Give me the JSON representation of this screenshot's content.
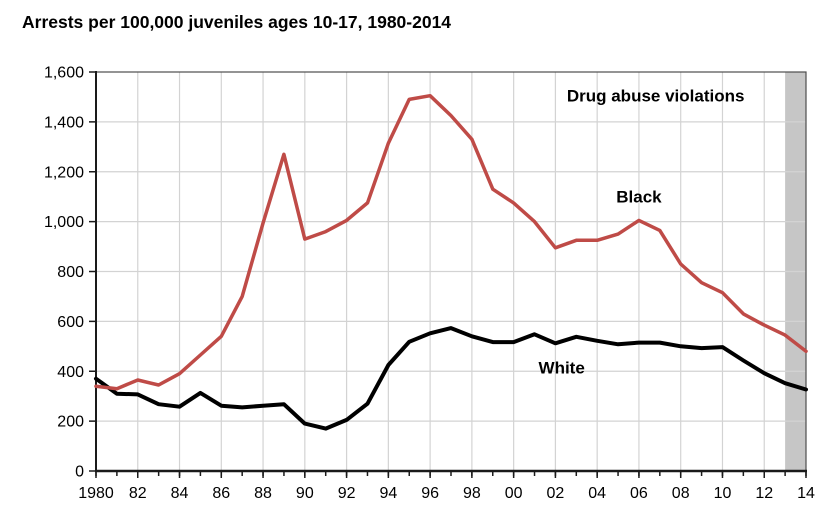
{
  "title": "Arrests per 100,000 juveniles ages 10-17, 1980-2014",
  "chart_data": {
    "type": "line",
    "title": "Arrests per 100,000 juveniles ages 10-17, 1980-2014",
    "xlabel": "",
    "ylabel": "",
    "xlim": [
      1980,
      2014
    ],
    "ylim": [
      0,
      1600
    ],
    "grid": true,
    "x": [
      1980,
      1981,
      1982,
      1983,
      1984,
      1985,
      1986,
      1987,
      1988,
      1989,
      1990,
      1991,
      1992,
      1993,
      1994,
      1995,
      1996,
      1997,
      1998,
      1999,
      2000,
      2001,
      2002,
      2003,
      2004,
      2005,
      2006,
      2007,
      2008,
      2009,
      2010,
      2011,
      2012,
      2013,
      2014
    ],
    "series": [
      {
        "name": "White",
        "color": "#000000",
        "stroke_width": 4,
        "values": [
          370,
          310,
          307,
          268,
          258,
          313,
          262,
          255,
          262,
          268,
          190,
          170,
          205,
          270,
          425,
          518,
          552,
          573,
          540,
          517,
          517,
          548,
          512,
          538,
          522,
          508,
          515,
          515,
          500,
          493,
          497,
          443,
          392,
          352,
          327
        ]
      },
      {
        "name": "Black",
        "color": "#bf4b47",
        "stroke_width": 3.5,
        "values": [
          340,
          330,
          365,
          345,
          390,
          465,
          540,
          700,
          995,
          1270,
          930,
          960,
          1005,
          1075,
          1315,
          1490,
          1505,
          1425,
          1330,
          1130,
          1075,
          1000,
          895,
          925,
          925,
          950,
          1005,
          965,
          830,
          755,
          715,
          630,
          585,
          545,
          480
        ]
      }
    ],
    "y_ticks": [
      {
        "value": 0,
        "label": "0"
      },
      {
        "value": 200,
        "label": "200"
      },
      {
        "value": 400,
        "label": "400"
      },
      {
        "value": 600,
        "label": "600"
      },
      {
        "value": 800,
        "label": "800"
      },
      {
        "value": 1000,
        "label": "1,000"
      },
      {
        "value": 1200,
        "label": "1,200"
      },
      {
        "value": 1400,
        "label": "1,400"
      },
      {
        "value": 1600,
        "label": "1,600"
      }
    ],
    "x_ticks": [
      {
        "year": 1980,
        "label": "1980"
      },
      {
        "year": 1982,
        "label": "82"
      },
      {
        "year": 1984,
        "label": "84"
      },
      {
        "year": 1986,
        "label": "86"
      },
      {
        "year": 1988,
        "label": "88"
      },
      {
        "year": 1990,
        "label": "90"
      },
      {
        "year": 1992,
        "label": "92"
      },
      {
        "year": 1994,
        "label": "94"
      },
      {
        "year": 1996,
        "label": "96"
      },
      {
        "year": 1998,
        "label": "98"
      },
      {
        "year": 2000,
        "label": "00"
      },
      {
        "year": 2002,
        "label": "02"
      },
      {
        "year": 2004,
        "label": "04"
      },
      {
        "year": 2006,
        "label": "06"
      },
      {
        "year": 2008,
        "label": "08"
      },
      {
        "year": 2010,
        "label": "10"
      },
      {
        "year": 2012,
        "label": "12"
      },
      {
        "year": 2014,
        "label": "14"
      }
    ],
    "annotations": [
      {
        "id": "annotation-drug-abuse-violations",
        "text": "Drug abuse violations",
        "x": 2006.8,
        "y": 1505,
        "font_size": 17
      },
      {
        "id": "annotation-black-label",
        "text": "Black",
        "x": 2006.0,
        "y": 1100,
        "font_size": 17
      },
      {
        "id": "annotation-white-label",
        "text": "White",
        "x": 2002.3,
        "y": 415,
        "font_size": 17
      }
    ],
    "shaded_band": {
      "from_year": 2013,
      "to_year": 2014,
      "color": "#c6c6c6"
    },
    "legend_position": "none",
    "colors": {
      "grid": "#d3d3d3",
      "border": "#4d4d4d",
      "axis": "#1a1a1a",
      "text": "#000000"
    }
  }
}
